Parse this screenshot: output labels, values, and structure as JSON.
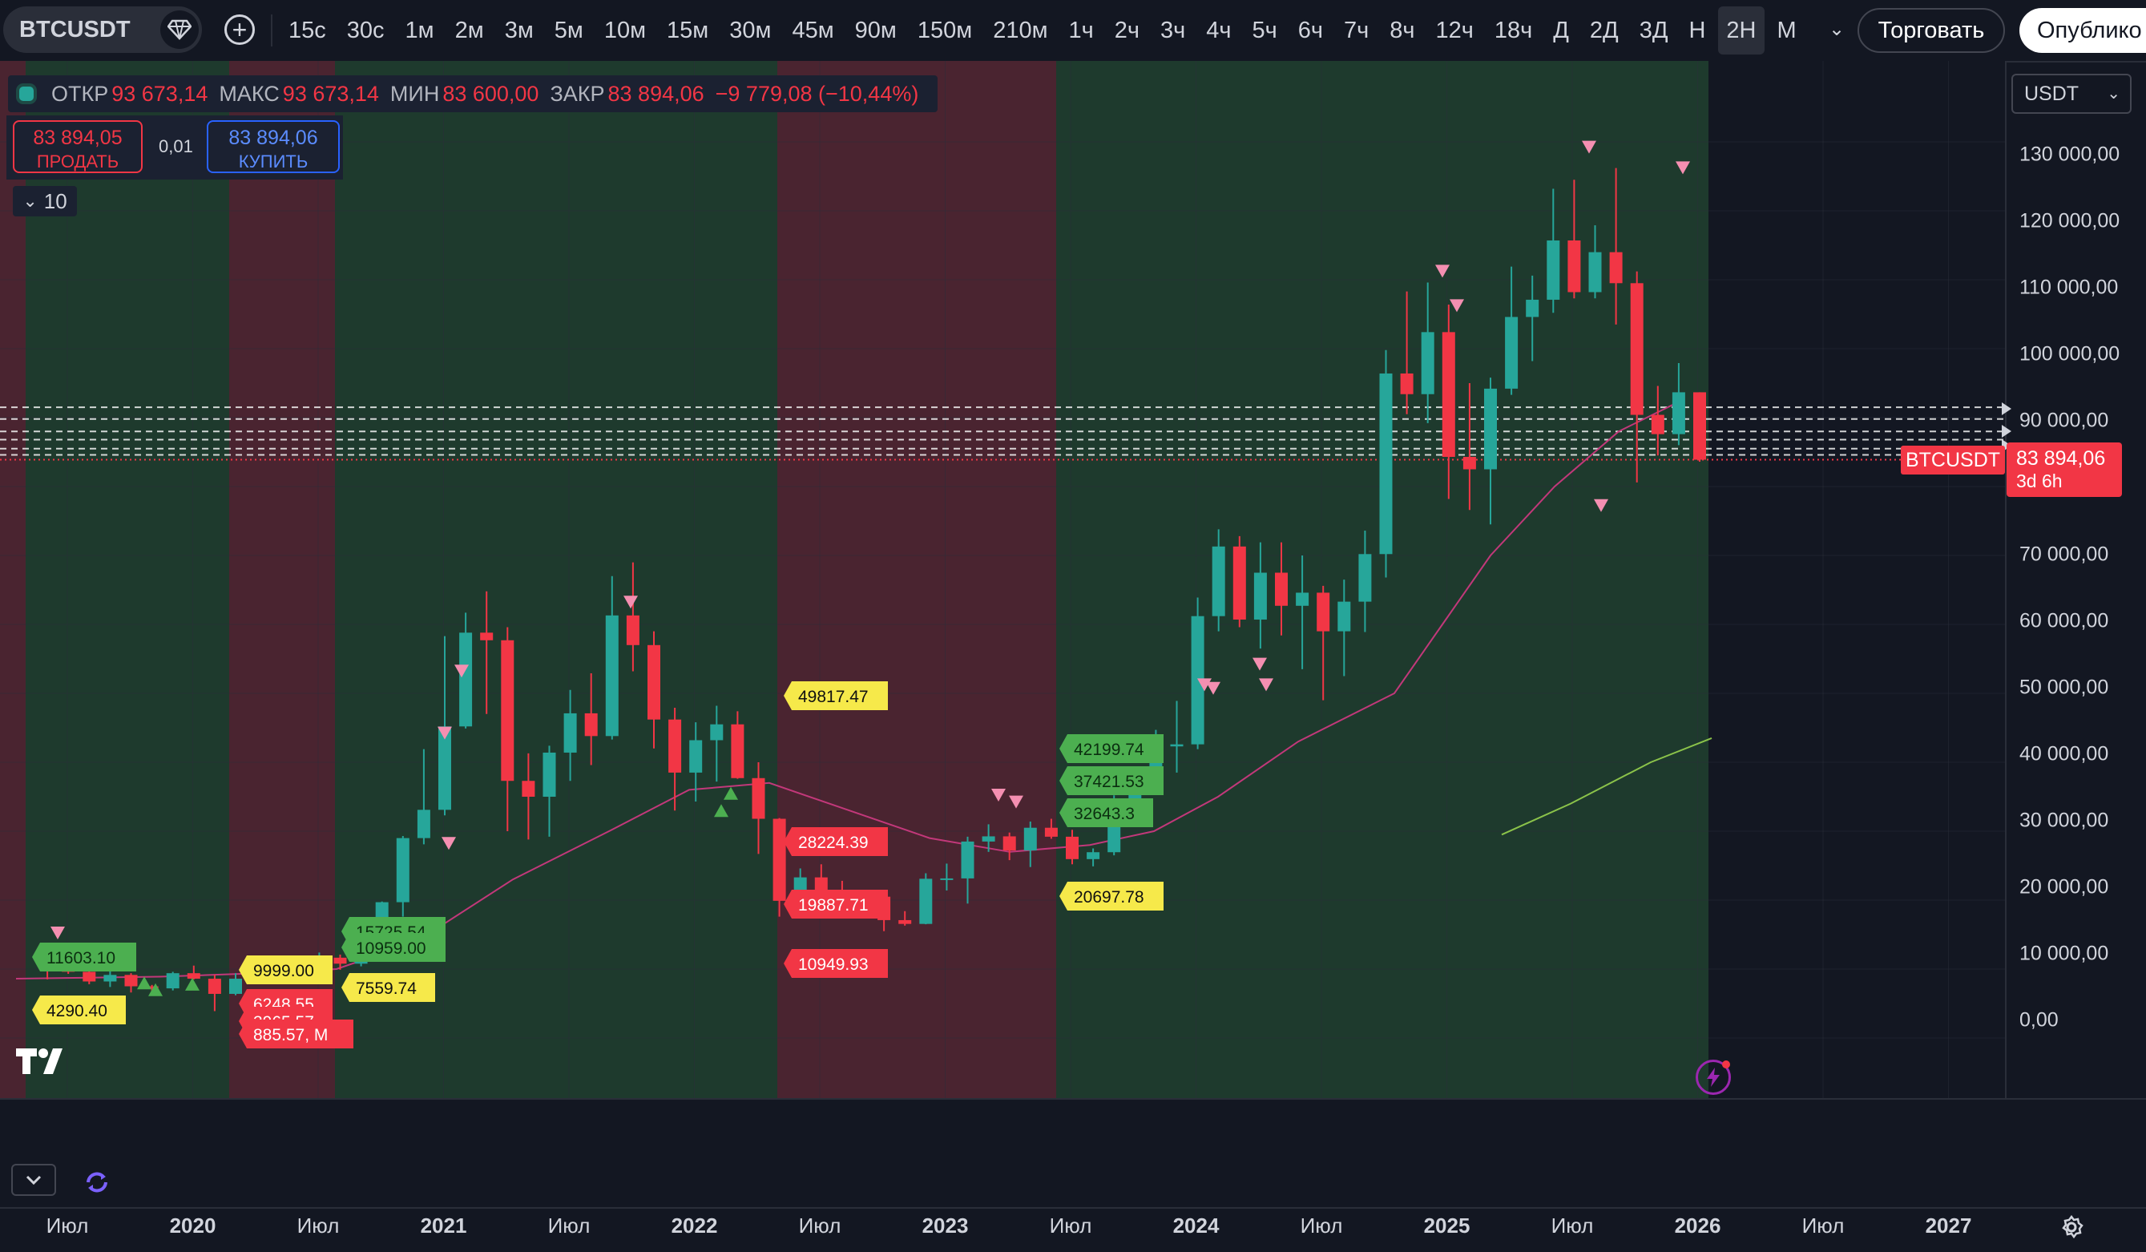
{
  "toolbar": {
    "symbol": "BTCUSDT",
    "intervals": [
      "15с",
      "30с",
      "1м",
      "2м",
      "3м",
      "5м",
      "10м",
      "15м",
      "30м",
      "45м",
      "90м",
      "150м",
      "210м",
      "1ч",
      "2ч",
      "3ч",
      "4ч",
      "5ч",
      "6ч",
      "7ч",
      "8ч",
      "12ч",
      "18ч",
      "Д",
      "2Д",
      "3Д",
      "Н",
      "2Н",
      "М"
    ],
    "active_interval": "2Н",
    "trade_label": "Торговать",
    "publish_label": "Опублико"
  },
  "legend": {
    "open_label": "ОТКР",
    "open": "93 673,14",
    "high_label": "МАКС",
    "high": "93 673,14",
    "low_label": "МИН",
    "low": "83 600,00",
    "close_label": "ЗАКР",
    "close": "83 894,06",
    "change": "−9 779,08 (−10,44%)"
  },
  "trade_panel": {
    "sell_price": "83 894,05",
    "sell_label": "ПРОДАТЬ",
    "spread": "0,01",
    "buy_price": "83 894,06",
    "buy_label": "КУПИТЬ"
  },
  "indicator_collapse": {
    "count": "10"
  },
  "currency": "USDT",
  "price_axis": [
    "130 000,00",
    "120 000,00",
    "110 000,00",
    "100 000,00",
    "90 000,00",
    "70 000,00",
    "60 000,00",
    "50 000,00",
    "40 000,00",
    "30 000,00",
    "20 000,00",
    "10 000,00",
    "0,00"
  ],
  "last_price": {
    "symbol": "BTCUSDT",
    "price": "83 894,06",
    "countdown": "3d 6h"
  },
  "time_axis": [
    {
      "label": "Июл",
      "bold": false
    },
    {
      "label": "2020",
      "bold": true
    },
    {
      "label": "Июл",
      "bold": false
    },
    {
      "label": "2021",
      "bold": true
    },
    {
      "label": "Июл",
      "bold": false
    },
    {
      "label": "2022",
      "bold": true
    },
    {
      "label": "Июл",
      "bold": false
    },
    {
      "label": "2023",
      "bold": true
    },
    {
      "label": "Июл",
      "bold": false
    },
    {
      "label": "2024",
      "bold": true
    },
    {
      "label": "Июл",
      "bold": false
    },
    {
      "label": "2025",
      "bold": true
    },
    {
      "label": "Июл",
      "bold": false
    },
    {
      "label": "2026",
      "bold": true
    },
    {
      "label": "Июл",
      "bold": false
    },
    {
      "label": "2027",
      "bold": true
    }
  ],
  "price_labels": [
    {
      "text": "11603.10",
      "color": "green"
    },
    {
      "text": "4290.40",
      "color": "yellow"
    },
    {
      "text": "9999.00",
      "color": "yellow"
    },
    {
      "text": "6248.55",
      "color": "red"
    },
    {
      "text": "3965.57",
      "color": "red"
    },
    {
      "text": "885.57, M",
      "color": "red"
    },
    {
      "text": "15725.54",
      "color": "green"
    },
    {
      "text": "10959.00",
      "color": "green"
    },
    {
      "text": "7559.74",
      "color": "yellow"
    },
    {
      "text": "49817.47",
      "color": "yellow"
    },
    {
      "text": "28224.39",
      "color": "red"
    },
    {
      "text": "19887.71",
      "color": "red"
    },
    {
      "text": "10949.93",
      "color": "red"
    },
    {
      "text": "42199.74",
      "color": "green"
    },
    {
      "text": "37421.53",
      "color": "green"
    },
    {
      "text": "32643.3",
      "color": "green"
    },
    {
      "text": "20697.78",
      "color": "yellow"
    }
  ],
  "colors": {
    "up": "#26a69a",
    "down": "#f23645",
    "bg": "#131722",
    "zone_green": "#1e3a2d",
    "zone_red": "#4a2430",
    "ma_pink": "#c2387a",
    "ma_green": "#8bc34a",
    "yellow": "#f6e94a"
  },
  "chart_data": {
    "type": "candlestick",
    "symbol": "BTCUSDT",
    "interval": "2Н",
    "ylim": [
      0,
      130000
    ],
    "x_start": "2019-06",
    "x_end": "2027-06",
    "candles": [
      [
        "2019-07",
        11000,
        12000,
        8500,
        10000
      ],
      [
        "2019-08",
        10000,
        10900,
        9300,
        9600
      ],
      [
        "2019-09",
        9600,
        10400,
        7800,
        8200
      ],
      [
        "2019-10",
        8200,
        10300,
        7400,
        9150
      ],
      [
        "2019-11",
        9150,
        9400,
        6600,
        7500
      ],
      [
        "2019-12",
        7500,
        7700,
        6500,
        7200
      ],
      [
        "2020-01",
        7200,
        9600,
        6900,
        9400
      ],
      [
        "2020-02",
        9400,
        10500,
        8500,
        8600
      ],
      [
        "2020-03",
        8600,
        9200,
        3900,
        6400
      ],
      [
        "2020-04",
        6400,
        9400,
        6200,
        8600
      ],
      [
        "2020-05",
        8600,
        10000,
        8100,
        9450
      ],
      [
        "2020-06",
        9450,
        10400,
        8900,
        9140
      ],
      [
        "2020-07",
        9140,
        11400,
        9000,
        11350
      ],
      [
        "2020-08",
        11350,
        12400,
        11000,
        11650
      ],
      [
        "2020-09",
        11650,
        12100,
        9900,
        10780
      ],
      [
        "2020-10",
        10780,
        14100,
        10400,
        13800
      ],
      [
        "2020-11",
        13800,
        19800,
        13200,
        19700
      ],
      [
        "2020-12",
        19700,
        29300,
        17600,
        29000
      ],
      [
        "2021-01",
        29000,
        41900,
        28100,
        33100
      ],
      [
        "2021-02",
        33100,
        58300,
        32300,
        45200
      ],
      [
        "2021-03",
        45200,
        61700,
        44900,
        58800
      ],
      [
        "2021-04",
        58800,
        64800,
        47000,
        57700
      ],
      [
        "2021-05",
        57700,
        59600,
        30000,
        37300
      ],
      [
        "2021-06",
        37300,
        41300,
        28800,
        35000
      ],
      [
        "2021-07",
        35000,
        42400,
        29200,
        41400
      ],
      [
        "2021-08",
        41400,
        50500,
        37300,
        47100
      ],
      [
        "2021-09",
        47100,
        52900,
        39600,
        43800
      ],
      [
        "2021-10",
        43800,
        67000,
        43300,
        61300
      ],
      [
        "2021-11",
        61300,
        69000,
        53200,
        57000
      ],
      [
        "2021-12",
        57000,
        59000,
        42000,
        46200
      ],
      [
        "2022-01",
        46200,
        47900,
        33000,
        38500
      ],
      [
        "2022-02",
        38500,
        45800,
        34300,
        43200
      ],
      [
        "2022-03",
        43200,
        48200,
        37200,
        45500
      ],
      [
        "2022-04",
        45500,
        47400,
        37600,
        37700
      ],
      [
        "2022-05",
        37700,
        40000,
        26700,
        31800
      ],
      [
        "2022-06",
        31800,
        31900,
        17600,
        19900
      ],
      [
        "2022-07",
        19900,
        24600,
        18800,
        23300
      ],
      [
        "2022-08",
        23300,
        25200,
        19600,
        20050
      ],
      [
        "2022-09",
        20050,
        22800,
        18100,
        19400
      ],
      [
        "2022-10",
        19400,
        21000,
        18200,
        20500
      ],
      [
        "2022-11",
        20500,
        21500,
        15500,
        17100
      ],
      [
        "2022-12",
        17100,
        18400,
        16300,
        16550
      ],
      [
        "2023-01",
        16550,
        23900,
        16500,
        23100
      ],
      [
        "2023-02",
        23100,
        25300,
        21400,
        23150
      ],
      [
        "2023-03",
        23150,
        29200,
        19500,
        28500
      ],
      [
        "2023-04",
        28500,
        31000,
        27000,
        29250
      ],
      [
        "2023-05",
        29250,
        29800,
        25800,
        27200
      ],
      [
        "2023-06",
        27200,
        31400,
        24800,
        30500
      ],
      [
        "2023-07",
        30500,
        31800,
        28900,
        29200
      ],
      [
        "2023-08",
        29200,
        30200,
        25200,
        25950
      ],
      [
        "2023-09",
        25950,
        27500,
        24900,
        26950
      ],
      [
        "2023-10",
        26950,
        35200,
        26500,
        34500
      ],
      [
        "2023-11",
        34500,
        38400,
        34100,
        37700
      ],
      [
        "2023-12",
        37700,
        44700,
        37600,
        42300
      ],
      [
        "2024-01",
        42300,
        48900,
        38500,
        42600
      ],
      [
        "2024-02",
        42600,
        63900,
        41900,
        61200
      ],
      [
        "2024-03",
        61200,
        73800,
        59000,
        71300
      ],
      [
        "2024-04",
        71300,
        72800,
        59600,
        60700
      ],
      [
        "2024-05",
        60700,
        71900,
        56500,
        67500
      ],
      [
        "2024-06",
        67500,
        71900,
        58400,
        62700
      ],
      [
        "2024-07",
        62700,
        70000,
        53500,
        64600
      ],
      [
        "2024-08",
        64600,
        65600,
        49000,
        59000
      ],
      [
        "2024-09",
        59000,
        66500,
        52500,
        63300
      ],
      [
        "2024-10",
        63300,
        73600,
        58900,
        70200
      ],
      [
        "2024-11",
        70200,
        99800,
        66800,
        96400
      ],
      [
        "2024-12",
        96400,
        108300,
        90500,
        93400
      ],
      [
        "2025-01",
        93400,
        109600,
        89200,
        102400
      ],
      [
        "2025-02",
        102400,
        106400,
        78200,
        84300
      ],
      [
        "2025-03",
        84300,
        95000,
        76600,
        82500
      ],
      [
        "2025-04",
        82500,
        95800,
        74500,
        94200
      ],
      [
        "2025-05",
        94200,
        111900,
        93300,
        104600
      ],
      [
        "2025-06",
        104600,
        110600,
        98200,
        107100
      ],
      [
        "2025-07",
        107100,
        123200,
        105200,
        115700
      ],
      [
        "2025-08",
        115700,
        124500,
        107300,
        108200
      ],
      [
        "2025-09",
        108200,
        117900,
        107300,
        114000
      ],
      [
        "2025-10",
        114000,
        126200,
        103500,
        109500
      ],
      [
        "2025-11",
        109500,
        111200,
        80600,
        90400
      ],
      [
        "2025-12",
        90400,
        94600,
        84500,
        87600
      ],
      [
        "2026-01",
        87600,
        97900,
        86000,
        93673
      ],
      [
        "2026-02",
        93673.14,
        93673.14,
        83600,
        83894.06
      ]
    ],
    "last_close": 83894.06
  }
}
